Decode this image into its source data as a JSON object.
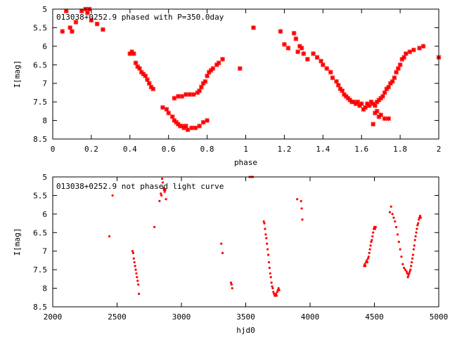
{
  "chart_data": [
    {
      "type": "scatter",
      "title": "013038+0252.9 phased with P=350.0day",
      "xlabel": "phase",
      "ylabel": "I[mag]",
      "xlim": [
        0,
        2
      ],
      "ylim": [
        8.5,
        5
      ],
      "y_inverted": true,
      "xticks": [
        "0",
        "0.2",
        "0.4",
        "0.6",
        "0.8",
        "1",
        "1.2",
        "1.4",
        "1.6",
        "1.8",
        "2"
      ],
      "xtick_values": [
        0,
        0.2,
        0.4,
        0.6,
        0.8,
        1,
        1.2,
        1.4,
        1.6,
        1.8,
        2
      ],
      "yticks": [
        "5",
        "5.5",
        "6",
        "6.5",
        "7",
        "7.5",
        "8",
        "8.5"
      ],
      "ytick_values": [
        5,
        5.5,
        6,
        6.5,
        7,
        7.5,
        8,
        8.5
      ],
      "marker_color": "#ff0000",
      "grid": false,
      "series": [
        {
          "x": [
            0.05,
            0.07,
            0.09,
            0.1,
            0.12,
            0.15,
            0.17,
            0.18,
            0.19,
            0.2,
            0.23,
            0.26,
            0.4,
            0.41,
            0.42,
            0.43,
            0.44,
            0.45,
            0.46,
            0.47,
            0.48,
            0.49,
            0.5,
            0.51,
            0.52,
            0.57,
            0.59,
            0.6,
            0.62,
            0.63,
            0.64,
            0.65,
            0.66,
            0.67,
            0.68,
            0.69,
            0.7,
            0.72,
            0.74,
            0.76,
            0.78,
            0.8,
            0.63,
            0.65,
            0.67,
            0.69,
            0.71,
            0.73,
            0.75,
            0.76,
            0.77,
            0.78,
            0.79,
            0.8,
            0.81,
            0.82,
            0.83,
            0.85,
            0.86,
            0.88,
            0.97,
            1.04,
            1.18,
            1.2,
            1.22,
            1.25,
            1.26,
            1.27,
            1.28,
            1.29,
            1.3,
            1.32,
            1.35,
            1.37,
            1.39,
            1.4,
            1.42,
            1.44,
            1.45,
            1.47,
            1.48,
            1.49,
            1.5,
            1.51,
            1.52,
            1.53,
            1.54,
            1.55,
            1.56,
            1.57,
            1.58,
            1.59,
            1.6,
            1.61,
            1.62,
            1.63,
            1.64,
            1.65,
            1.66,
            1.67,
            1.68,
            1.69,
            1.7,
            1.71,
            1.72,
            1.73,
            1.74,
            1.75,
            1.76,
            1.77,
            1.78,
            1.79,
            1.8,
            1.81,
            1.82,
            1.83,
            1.85,
            1.87,
            1.9,
            1.92,
            2.0,
            1.66,
            1.68,
            1.7,
            1.72,
            1.74,
            1.67,
            1.69
          ],
          "y": [
            5.6,
            5.05,
            5.5,
            5.6,
            5.35,
            5.05,
            5.0,
            5.1,
            5.0,
            5.3,
            5.4,
            5.55,
            6.2,
            6.15,
            6.2,
            6.45,
            6.55,
            6.6,
            6.7,
            6.75,
            6.8,
            6.9,
            7.0,
            7.1,
            7.15,
            7.65,
            7.7,
            7.8,
            7.9,
            8.0,
            8.05,
            8.1,
            8.15,
            8.15,
            8.2,
            8.15,
            8.25,
            8.2,
            8.2,
            8.15,
            8.05,
            8.0,
            7.4,
            7.35,
            7.35,
            7.3,
            7.3,
            7.3,
            7.25,
            7.2,
            7.1,
            7.0,
            6.95,
            6.8,
            6.7,
            6.65,
            6.6,
            6.5,
            6.45,
            6.35,
            6.6,
            5.5,
            5.6,
            5.95,
            6.05,
            5.65,
            5.8,
            6.15,
            6.0,
            6.05,
            6.2,
            6.35,
            6.2,
            6.3,
            6.4,
            6.5,
            6.6,
            6.7,
            6.85,
            6.95,
            7.05,
            7.15,
            7.2,
            7.3,
            7.35,
            7.4,
            7.45,
            7.5,
            7.5,
            7.55,
            7.5,
            7.6,
            7.55,
            7.7,
            7.65,
            7.55,
            7.6,
            7.5,
            7.55,
            7.6,
            7.5,
            7.45,
            7.4,
            7.35,
            7.25,
            7.15,
            7.1,
            7.0,
            6.95,
            6.85,
            6.7,
            6.6,
            6.5,
            6.35,
            6.3,
            6.2,
            6.15,
            6.1,
            6.05,
            6.0,
            6.3,
            8.1,
            7.75,
            7.85,
            7.95,
            7.95,
            7.8,
            7.9
          ]
        }
      ]
    },
    {
      "type": "scatter",
      "title": "013038+0252.9 not phased light curve",
      "xlabel": "hjd0",
      "ylabel": "I[mag]",
      "xlim": [
        2000,
        5000
      ],
      "ylim": [
        8.5,
        5
      ],
      "y_inverted": true,
      "xticks": [
        "2000",
        "2500",
        "3000",
        "3500",
        "4000",
        "4500",
        "5000"
      ],
      "xtick_values": [
        2000,
        2500,
        3000,
        3500,
        4000,
        4500,
        5000
      ],
      "yticks": [
        "5",
        "5.5",
        "6",
        "6.5",
        "7",
        "7.5",
        "8",
        "8.5"
      ],
      "ytick_values": [
        5,
        5.5,
        6,
        6.5,
        7,
        7.5,
        8,
        8.5
      ],
      "marker_color": "#ff0000",
      "grid": false,
      "series": [
        {
          "x": [
            2440,
            2465,
            2620,
            2625,
            2630,
            2635,
            2640,
            2645,
            2650,
            2655,
            2660,
            2665,
            2670,
            2790,
            2830,
            2840,
            2845,
            2850,
            2855,
            2860,
            2865,
            2870,
            2875,
            2880,
            3310,
            3320,
            3385,
            3390,
            3395,
            3530,
            3545,
            3555,
            3640,
            3645,
            3650,
            3655,
            3660,
            3665,
            3670,
            3675,
            3680,
            3685,
            3690,
            3695,
            3700,
            3705,
            3710,
            3715,
            3720,
            3725,
            3730,
            3735,
            3740,
            3745,
            3750,
            3755,
            3760,
            3900,
            3930,
            3935,
            3940,
            4420,
            4425,
            4430,
            4435,
            4440,
            4445,
            4450,
            4455,
            4460,
            4465,
            4470,
            4475,
            4480,
            4485,
            4490,
            4495,
            4500,
            4505,
            4510,
            4620,
            4630,
            4640,
            4650,
            4660,
            4670,
            4680,
            4690,
            4700,
            4710,
            4720,
            4730,
            4740,
            4750,
            4755,
            4760,
            4765,
            4770,
            4775,
            4780,
            4785,
            4790,
            4795,
            4800,
            4805,
            4810,
            4815,
            4820,
            4825,
            4830,
            4835,
            4840,
            4845,
            4850,
            4855,
            4860
          ],
          "y": [
            6.6,
            5.5,
            7.0,
            7.05,
            7.2,
            7.3,
            7.4,
            7.5,
            7.6,
            7.7,
            7.8,
            7.9,
            8.15,
            6.35,
            5.65,
            5.45,
            5.5,
            5.05,
            5.15,
            5.3,
            5.35,
            5.4,
            5.35,
            5.6,
            6.8,
            7.05,
            7.85,
            7.9,
            8.0,
            5.0,
            5.0,
            5.0,
            6.2,
            6.25,
            6.4,
            6.55,
            6.65,
            6.8,
            6.95,
            7.1,
            7.3,
            7.45,
            7.6,
            7.7,
            7.85,
            7.95,
            8.0,
            8.1,
            8.15,
            8.2,
            8.2,
            8.15,
            8.2,
            8.1,
            8.05,
            8.0,
            8.05,
            5.6,
            5.65,
            5.85,
            6.15,
            7.4,
            7.35,
            7.4,
            7.3,
            7.25,
            7.3,
            7.2,
            7.15,
            7.05,
            6.95,
            6.85,
            6.75,
            6.7,
            6.6,
            6.5,
            6.4,
            6.35,
            6.4,
            6.35,
            5.95,
            5.8,
            6.0,
            6.1,
            6.2,
            6.35,
            6.55,
            6.75,
            6.95,
            7.15,
            7.35,
            7.45,
            7.5,
            7.55,
            7.6,
            7.7,
            7.65,
            7.6,
            7.55,
            7.5,
            7.4,
            7.3,
            7.2,
            7.1,
            6.95,
            6.85,
            6.7,
            6.6,
            6.5,
            6.4,
            6.3,
            6.25,
            6.15,
            6.1,
            6.05,
            6.1
          ]
        }
      ]
    }
  ]
}
